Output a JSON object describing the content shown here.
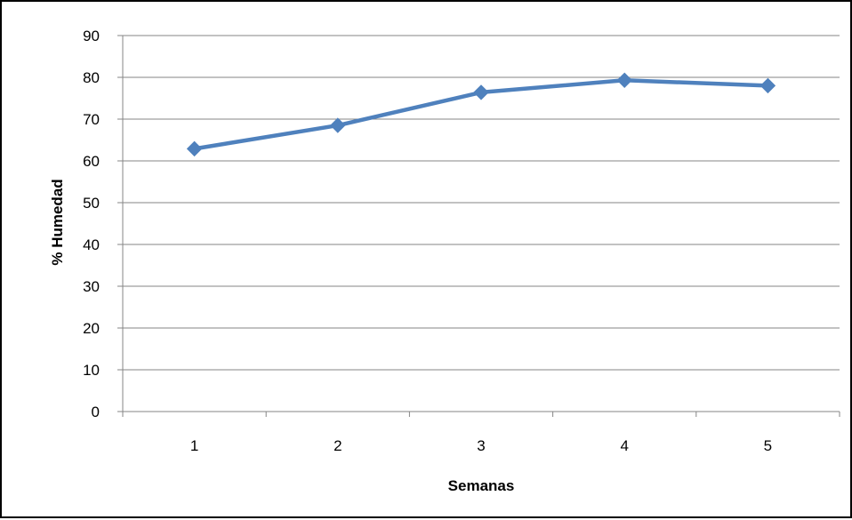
{
  "chart_data": {
    "type": "line",
    "title": "",
    "xlabel": "Semanas",
    "ylabel": "% Humedad",
    "categories": [
      "1",
      "2",
      "3",
      "4",
      "5"
    ],
    "series": [
      {
        "values": [
          62.9,
          68.5,
          76.4,
          79.3,
          78.0
        ],
        "color": "#4F81BD",
        "marker": "diamond"
      }
    ],
    "ylim": [
      0,
      90
    ],
    "yticks": [
      0,
      10,
      20,
      30,
      40,
      50,
      60,
      70,
      80,
      90
    ],
    "grid": true,
    "legend": "none"
  }
}
